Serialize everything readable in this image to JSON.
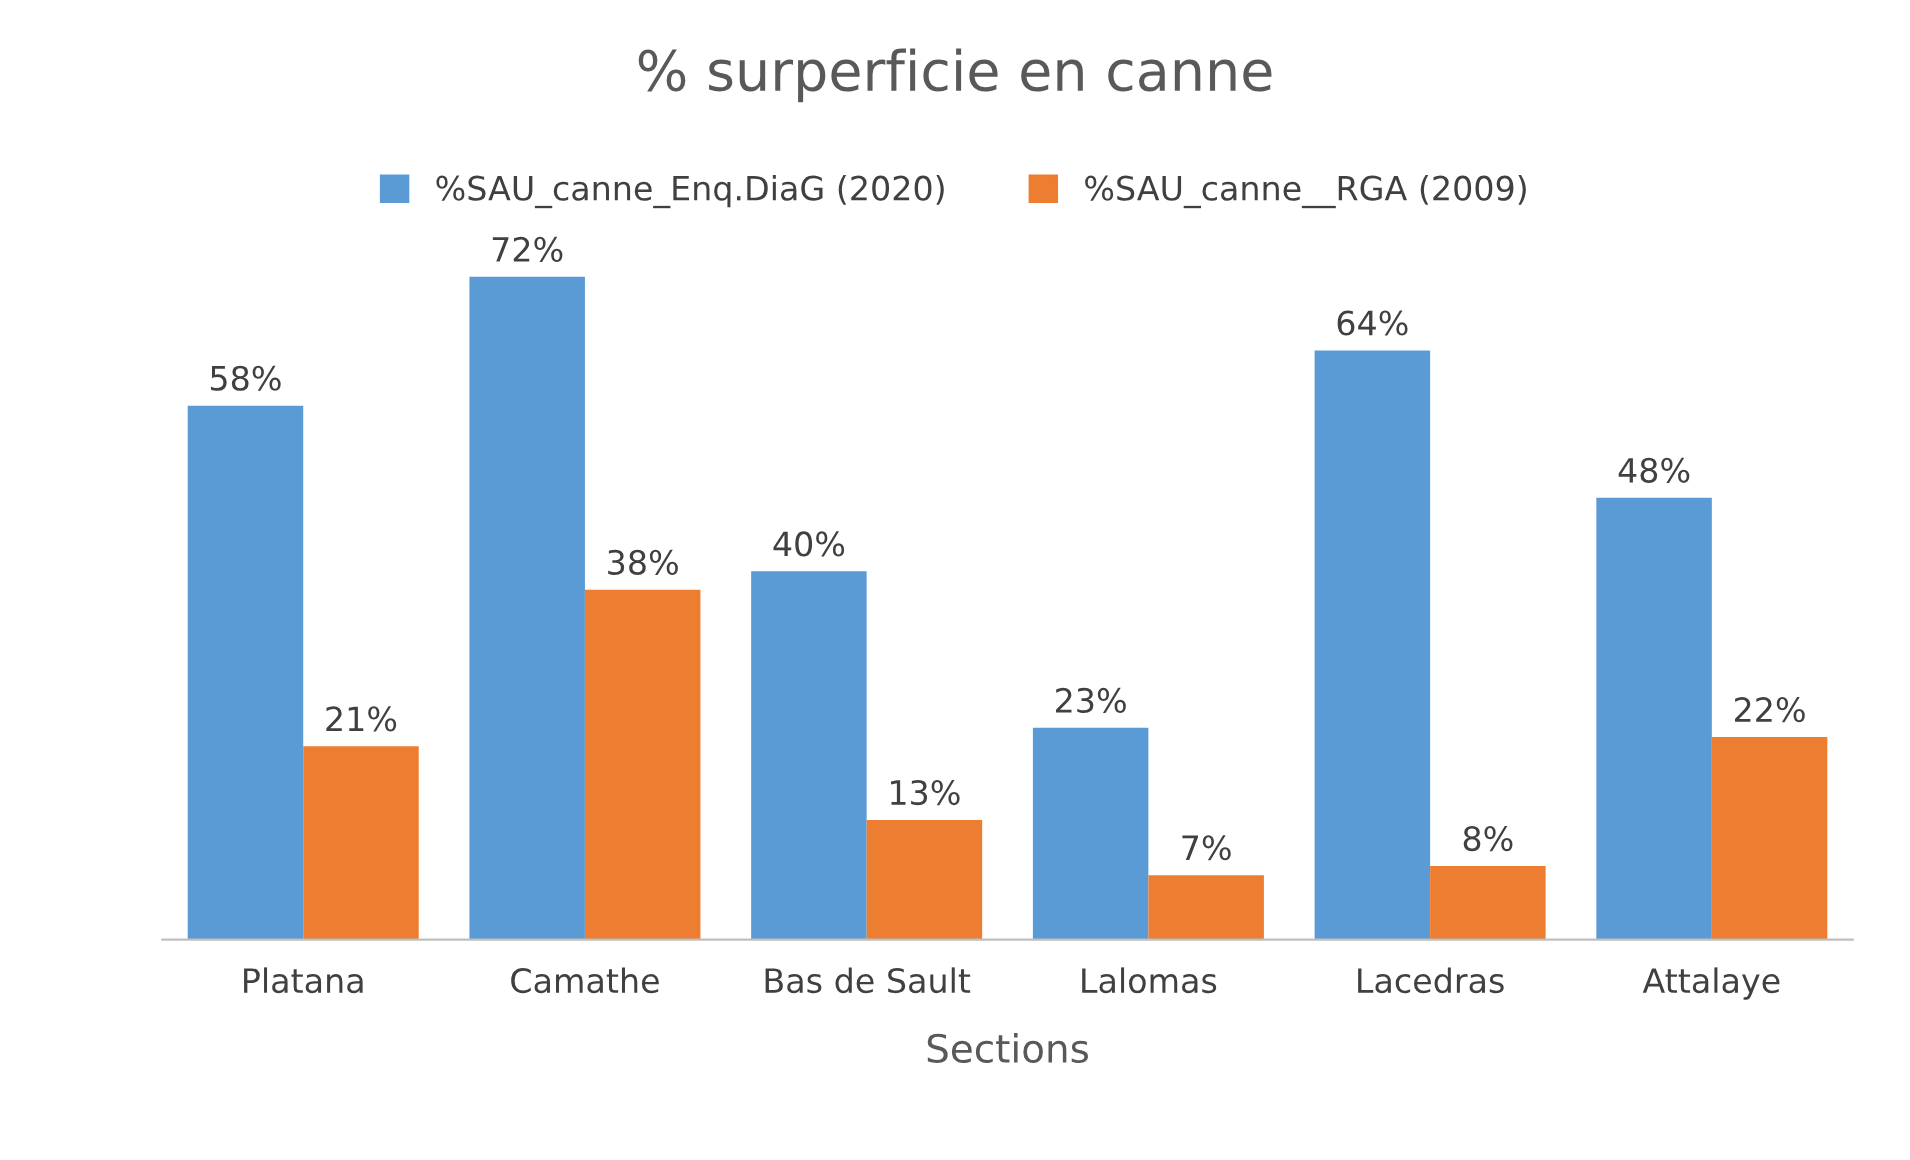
{
  "chart_data": {
    "type": "bar",
    "title": "% surperficie en canne",
    "xlabel": "Sections",
    "categories": [
      "Platana",
      "Camathe",
      "Bas de Sault",
      "Lalomas",
      "Lacedras",
      "Attalaye"
    ],
    "series": [
      {
        "name": "%SAU_canne_Enq.DiaG (2020)",
        "color": "#5b9bd5",
        "values": [
          58,
          72,
          40,
          23,
          64,
          48
        ],
        "value_labels": [
          "58%",
          "72%",
          "40%",
          "23%",
          "64%",
          "48%"
        ]
      },
      {
        "name": "%SAU_canne__RGA (2009)",
        "color": "#ed7d31",
        "values": [
          21,
          38,
          13,
          7,
          8,
          22
        ],
        "value_labels": [
          "21%",
          "38%",
          "13%",
          "7%",
          "8%",
          "22%"
        ]
      }
    ],
    "legend": "top",
    "grid": false
  }
}
